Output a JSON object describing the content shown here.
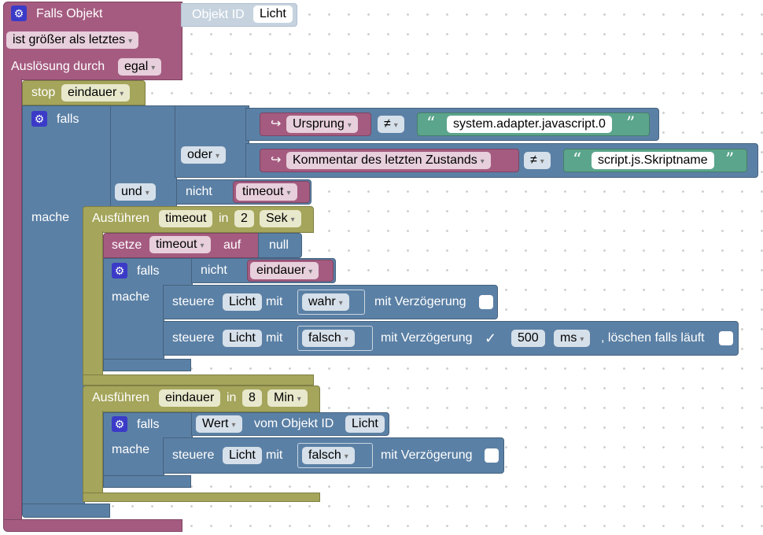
{
  "trigger": {
    "title": "Falls Objekt",
    "object_label": "Objekt ID",
    "object_value": "Licht",
    "compare": "ist größer als letztes",
    "trigger_label": "Auslösung durch",
    "trigger_value": "egal"
  },
  "stop": {
    "label": "stop",
    "value": "eindauer"
  },
  "if1": {
    "falls": "falls",
    "mache": "mache",
    "row1": {
      "prop": "Ursprung",
      "op": "≠",
      "text": "system.adapter.javascript.0"
    },
    "oder": "oder",
    "row2": {
      "prop": "Kommentar des letzten Zustands",
      "op": "≠",
      "text": "script.js.Skriptname"
    },
    "und": "und",
    "nicht": "nicht",
    "timeout_var": "timeout"
  },
  "timer1": {
    "label": "Ausführen",
    "var": "timeout",
    "in": "in",
    "num": "2",
    "unit": "Sek",
    "setze": "setze",
    "setze_var": "timeout",
    "auf": "auf",
    "null": "null",
    "falls": "falls",
    "mache": "mache",
    "nicht": "nicht",
    "cond_var": "eindauer",
    "ctrl1": {
      "steuere": "steuere",
      "obj": "Licht",
      "mit": "mit",
      "val": "wahr",
      "delay": "mit Verzögerung"
    },
    "ctrl2": {
      "steuere": "steuere",
      "obj": "Licht",
      "mit": "mit",
      "val": "falsch",
      "delay": "mit Verzögerung",
      "check": "✓",
      "ms_val": "500",
      "ms_unit": "ms",
      "clear": ", löschen falls läuft"
    }
  },
  "timer2": {
    "label": "Ausführen",
    "var": "eindauer",
    "in": "in",
    "num": "8",
    "unit": "Min",
    "falls": "falls",
    "mache": "mache",
    "wert": "Wert",
    "vom": "vom Objekt ID",
    "obj": "Licht",
    "ctrl": {
      "steuere": "steuere",
      "obj": "Licht",
      "mit": "mit",
      "val": "falsch",
      "delay": "mit Verzögerung"
    }
  },
  "icons": {
    "gear": "gear-icon",
    "arrow": "dropdown-arrow-icon",
    "return": "return-arrow-icon"
  },
  "colors": {
    "event": "#a55b80",
    "control": "#5b80a5",
    "timer": "#a5a55b",
    "text": "#5ba58c",
    "workspace": "#ffffff"
  }
}
